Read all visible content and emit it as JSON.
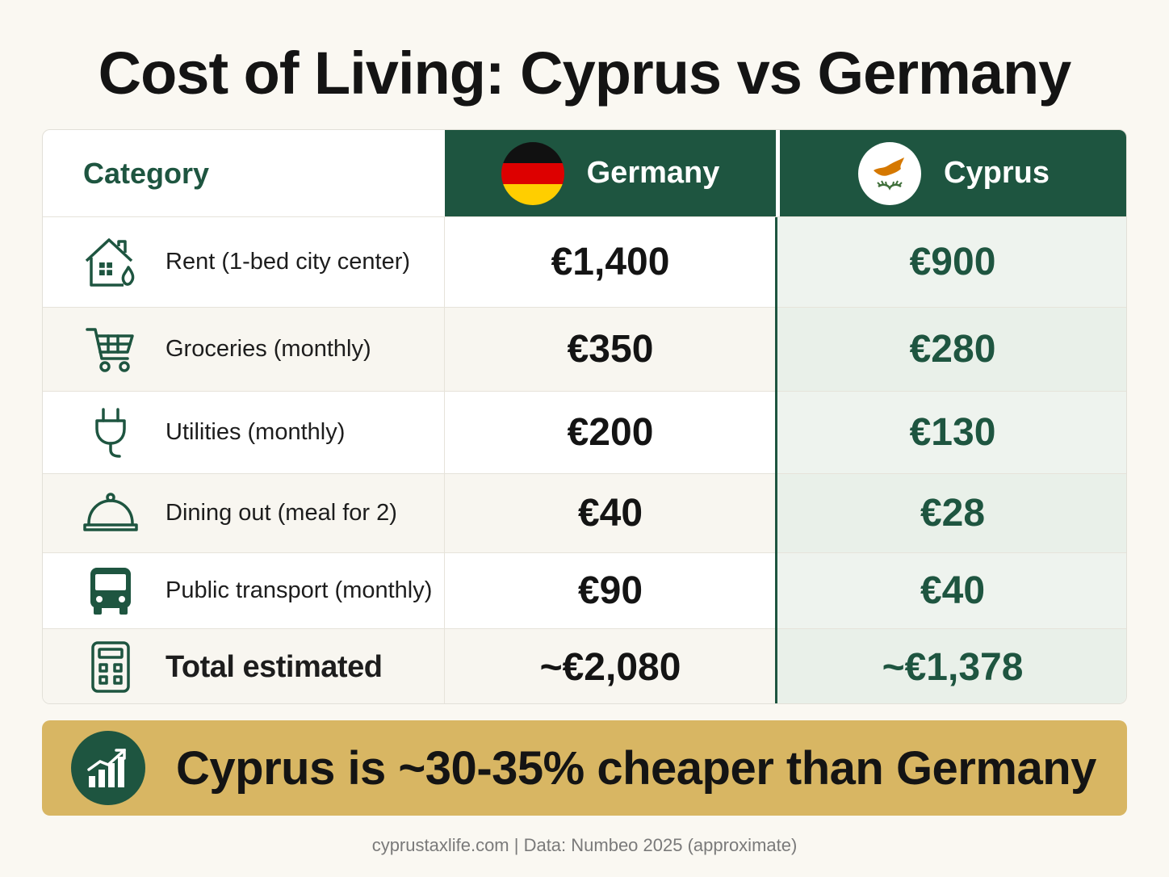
{
  "title": "Cost of Living: Cyprus vs Germany",
  "header": {
    "category": "Category",
    "germany": "Germany",
    "cyprus": "Cyprus"
  },
  "rows": [
    {
      "icon": "house-icon",
      "label": "Rent (1-bed city center)",
      "germany": "€1,400",
      "cyprus": "€900"
    },
    {
      "icon": "shopping-cart-icon",
      "label": "Groceries (monthly)",
      "germany": "€350",
      "cyprus": "€280"
    },
    {
      "icon": "plug-icon",
      "label": "Utilities (monthly)",
      "germany": "€200",
      "cyprus": "€130"
    },
    {
      "icon": "cloche-icon",
      "label": "Dining out (meal for 2)",
      "germany": "€40",
      "cyprus": "€28"
    },
    {
      "icon": "bus-icon",
      "label": "Public transport (monthly)",
      "germany": "€90",
      "cyprus": "€40"
    },
    {
      "icon": "calculator-icon",
      "label": "Total estimated",
      "germany": "~€2,080",
      "cyprus": "~€1,378"
    }
  ],
  "banner": {
    "icon": "growth-chart-icon",
    "text": "Cyprus is ~30-35% cheaper than Germany"
  },
  "footer": "cyprustaxlife.com | Data: Numbeo 2025 (approximate)",
  "colors": {
    "accent_green": "#1e5540",
    "banner_gold": "#d8b663",
    "background": "#faf8f2"
  }
}
